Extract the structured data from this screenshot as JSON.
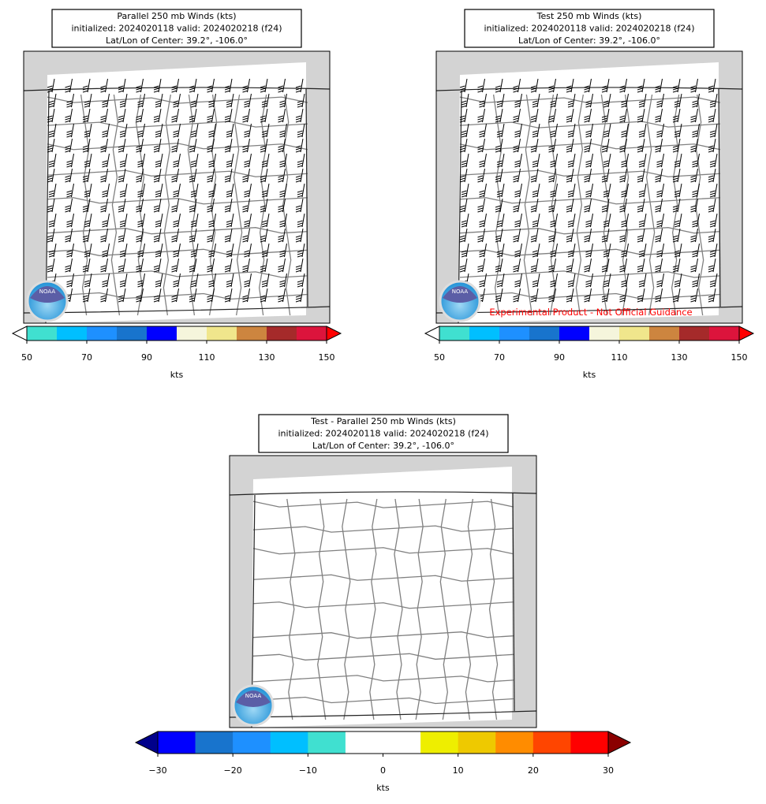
{
  "logo_text": "NOAA",
  "experimental_note": "Experimental Product - Not Official Guidance",
  "panels": [
    {
      "title": [
        "Parallel 250 mb Winds (kts)",
        "initialized: 2024020118 valid: 2024020218 (f24)",
        "Lat/Lon of Center: 39.2°, -106.0°"
      ],
      "colorbar": {
        "label": "kts",
        "lim": [
          50,
          150
        ],
        "ticks": [
          50,
          70,
          90,
          110,
          130,
          150
        ],
        "colors": [
          "#40e0d0",
          "#00bfff",
          "#1e90ff",
          "#1874cd",
          "#0000ff",
          "#f5f5dc",
          "#f0e68c",
          "#cd853f",
          "#a52a2a",
          "#dc143c"
        ],
        "under": "#ffffff",
        "over": "#ff0000"
      }
    },
    {
      "title": [
        "Test 250 mb Winds (kts)",
        "initialized: 2024020118 valid: 2024020218 (f24)",
        "Lat/Lon of Center: 39.2°, -106.0°"
      ],
      "colorbar": {
        "label": "kts",
        "lim": [
          50,
          150
        ],
        "ticks": [
          50,
          70,
          90,
          110,
          130,
          150
        ],
        "colors": [
          "#40e0d0",
          "#00bfff",
          "#1e90ff",
          "#1874cd",
          "#0000ff",
          "#f5f5dc",
          "#f0e68c",
          "#cd853f",
          "#a52a2a",
          "#dc143c"
        ],
        "under": "#ffffff",
        "over": "#ff0000"
      }
    },
    {
      "title": [
        "Test - Parallel 250 mb Winds (kts)",
        "initialized: 2024020118 valid: 2024020218 (f24)",
        "Lat/Lon of Center: 39.2°, -106.0°"
      ],
      "colorbar": {
        "label": "kts",
        "lim": [
          -30,
          30
        ],
        "ticks": [
          {
            "value": -30,
            "label": "−30"
          },
          {
            "value": -20,
            "label": "−20"
          },
          {
            "value": -10,
            "label": "−10"
          },
          0,
          10,
          20,
          30
        ],
        "colors": [
          "#0000ff",
          "#1874cd",
          "#1e90ff",
          "#00bfff",
          "#40e0d0",
          "#ffffff",
          "#ffffff",
          "#eeee00",
          "#eec900",
          "#ff8c00",
          "#ff4500",
          "#ff0000"
        ],
        "under": "#00008b",
        "over": "#8b0000"
      }
    }
  ]
}
